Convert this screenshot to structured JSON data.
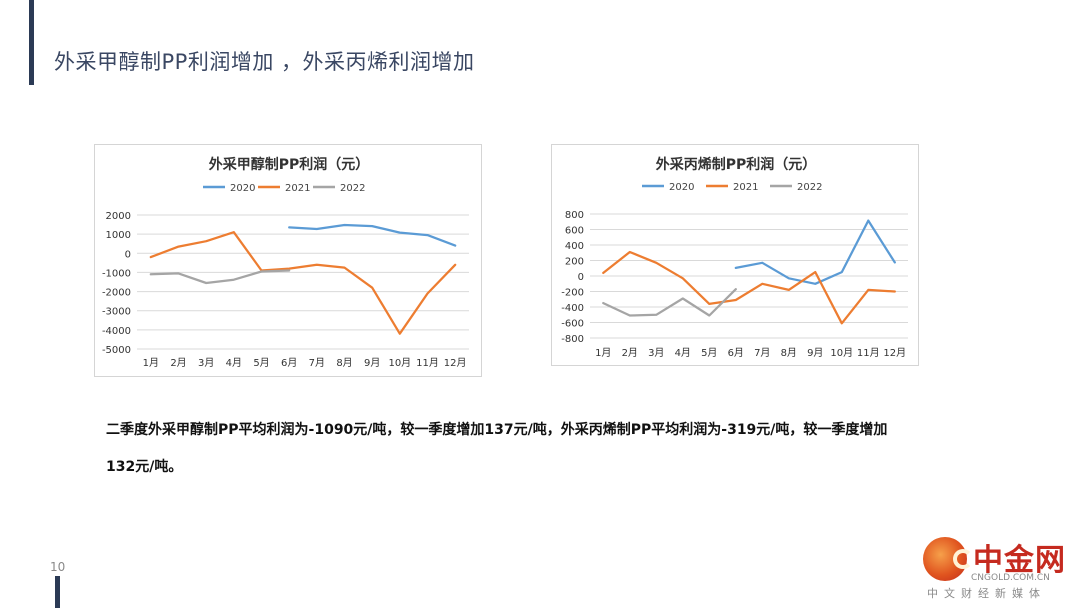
{
  "slide": {
    "title": "外采甲醇制PP利润增加 ，外采丙烯利润增加",
    "summary_line1": "二季度外采甲醇制PP平均利润为-1090元/吨，较一季度增加137元/吨，外采丙烯制PP平均利润为-319元/吨，较一季度增加",
    "summary_line2": "132元/吨。",
    "page_number": "10"
  },
  "watermark": {
    "brand": "中金网",
    "domain": "CNGOLD.COM.CN",
    "tagline": "中文财经新媒体"
  },
  "chart_data": [
    {
      "type": "line",
      "title": "外采甲醇制PP利润（元）",
      "categories": [
        "1月",
        "2月",
        "3月",
        "4月",
        "5月",
        "6月",
        "7月",
        "8月",
        "9月",
        "10月",
        "11月",
        "12月"
      ],
      "ylim": [
        -5000,
        2000
      ],
      "yticks": [
        2000,
        1000,
        0,
        -1000,
        -2000,
        -3000,
        -4000,
        -5000
      ],
      "grid": true,
      "legend_position": "top",
      "series": [
        {
          "name": "2020",
          "color": "#5b9bd5",
          "values": [
            null,
            null,
            null,
            null,
            null,
            1350,
            1270,
            1480,
            1420,
            1080,
            950,
            400
          ]
        },
        {
          "name": "2021",
          "color": "#ed7d31",
          "values": [
            -200,
            350,
            630,
            1100,
            -900,
            -800,
            -600,
            -750,
            -1800,
            -4200,
            -2100,
            -600
          ]
        },
        {
          "name": "2022",
          "color": "#a5a5a5",
          "values": [
            -1100,
            -1050,
            -1550,
            -1380,
            -950,
            -900,
            null,
            null,
            null,
            null,
            null,
            null
          ]
        }
      ]
    },
    {
      "type": "line",
      "title": "外采丙烯制PP利润（元）",
      "categories": [
        "1月",
        "2月",
        "3月",
        "4月",
        "5月",
        "6月",
        "7月",
        "8月",
        "9月",
        "10月",
        "11月",
        "12月"
      ],
      "ylim": [
        -800,
        800
      ],
      "yticks": [
        800,
        600,
        400,
        200,
        0,
        -200,
        -400,
        -600,
        -800
      ],
      "grid": true,
      "legend_position": "top",
      "series": [
        {
          "name": "2020",
          "color": "#5b9bd5",
          "values": [
            null,
            null,
            null,
            null,
            null,
            105,
            170,
            -30,
            -100,
            50,
            715,
            175
          ]
        },
        {
          "name": "2021",
          "color": "#ed7d31",
          "values": [
            40,
            310,
            170,
            -30,
            -360,
            -310,
            -100,
            -180,
            50,
            -610,
            -180,
            -200
          ]
        },
        {
          "name": "2022",
          "color": "#a5a5a5",
          "values": [
            -350,
            -510,
            -500,
            -290,
            -510,
            -170,
            null,
            null,
            null,
            null,
            null,
            null
          ]
        }
      ]
    }
  ]
}
